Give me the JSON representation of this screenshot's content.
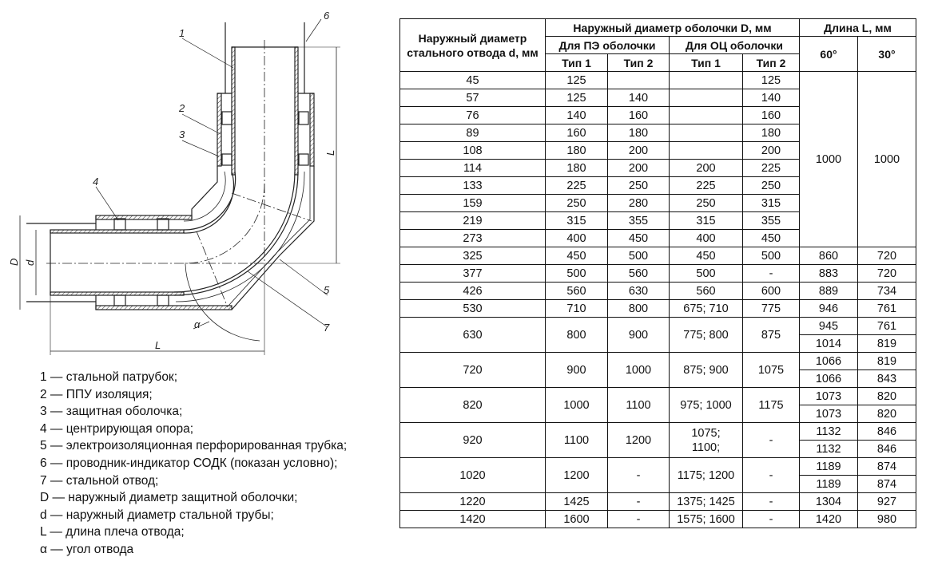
{
  "drawing": {
    "labels": {
      "n1": "1",
      "n2": "2",
      "n3": "3",
      "n4": "4",
      "n5": "5",
      "n6": "6",
      "n7": "7",
      "D": "D",
      "d": "d",
      "L_horizontal": "L",
      "L_vertical": "L",
      "alpha": "α"
    }
  },
  "legend": [
    "1 — стальной патрубок;",
    "2 — ППУ изоляция;",
    "3 — защитная оболочка;",
    "4 — центрирующая опора;",
    "5 — электроизоляционная перфорированная трубка;",
    "6 — проводник-индикатор СОДК (показан условно);",
    "7 — стальной отвод;",
    "D — наружный диаметр защитной оболочки;",
    "d — наружный диаметр стальной трубы;",
    "L — длина плеча отвода;",
    "α — угол отвода"
  ],
  "table": {
    "headers": {
      "steel_d": "Наружный диаметр стального отвода d, мм",
      "shell_D": "Наружный диаметр оболочки D, мм",
      "length_L": "Длина L, мм",
      "pe": "Для ПЭ оболочки",
      "oc": "Для ОЦ оболочки",
      "type1": "Тип 1",
      "type2": "Тип 2",
      "deg60": "60°",
      "deg30": "30°"
    },
    "merged_length": {
      "l60": "1000",
      "l30": "1000"
    },
    "rows": [
      {
        "d": "45",
        "pe1": "125",
        "pe2": "",
        "oc1": "",
        "oc2": "125"
      },
      {
        "d": "57",
        "pe1": "125",
        "pe2": "140",
        "oc1": "",
        "oc2": "140"
      },
      {
        "d": "76",
        "pe1": "140",
        "pe2": "160",
        "oc1": "",
        "oc2": "160"
      },
      {
        "d": "89",
        "pe1": "160",
        "pe2": "180",
        "oc1": "",
        "oc2": "180"
      },
      {
        "d": "108",
        "pe1": "180",
        "pe2": "200",
        "oc1": "",
        "oc2": "200"
      },
      {
        "d": "114",
        "pe1": "180",
        "pe2": "200",
        "oc1": "200",
        "oc2": "225"
      },
      {
        "d": "133",
        "pe1": "225",
        "pe2": "250",
        "oc1": "225",
        "oc2": "250"
      },
      {
        "d": "159",
        "pe1": "250",
        "pe2": "280",
        "oc1": "250",
        "oc2": "315"
      },
      {
        "d": "219",
        "pe1": "315",
        "pe2": "355",
        "oc1": "315",
        "oc2": "355"
      },
      {
        "d": "273",
        "pe1": "400",
        "pe2": "450",
        "oc1": "400",
        "oc2": "450"
      },
      {
        "d": "325",
        "pe1": "450",
        "pe2": "500",
        "oc1": "450",
        "oc2": "500",
        "L": [
          [
            "860",
            "720"
          ]
        ]
      },
      {
        "d": "377",
        "pe1": "500",
        "pe2": "560",
        "oc1": "500",
        "oc2": "-",
        "L": [
          [
            "883",
            "720"
          ]
        ]
      },
      {
        "d": "426",
        "pe1": "560",
        "pe2": "630",
        "oc1": "560",
        "oc2": "600",
        "L": [
          [
            "889",
            "734"
          ]
        ]
      },
      {
        "d": "530",
        "pe1": "710",
        "pe2": "800",
        "oc1": "675; 710",
        "oc2": "775",
        "L": [
          [
            "946",
            "761"
          ]
        ]
      },
      {
        "d": "630",
        "pe1": "800",
        "pe2": "900",
        "oc1": "775; 800",
        "oc2": "875",
        "L": [
          [
            "945",
            "761"
          ],
          [
            "1014",
            "819"
          ]
        ]
      },
      {
        "d": "720",
        "pe1": "900",
        "pe2": "1000",
        "oc1": "875; 900",
        "oc2": "1075",
        "L": [
          [
            "1066",
            "819"
          ],
          [
            "1066",
            "843"
          ]
        ]
      },
      {
        "d": "820",
        "pe1": "1000",
        "pe2": "1100",
        "oc1": "975; 1000",
        "oc2": "1175",
        "L": [
          [
            "1073",
            "820"
          ],
          [
            "1073",
            "820"
          ]
        ]
      },
      {
        "d": "920",
        "pe1": "1100",
        "pe2": "1200",
        "oc1": "1075;\n1100;",
        "oc2": "-",
        "L": [
          [
            "1132",
            "846"
          ],
          [
            "1132",
            "846"
          ]
        ]
      },
      {
        "d": "1020",
        "pe1": "1200",
        "pe2": "-",
        "oc1": "1175; 1200",
        "oc2": "-",
        "L": [
          [
            "1189",
            "874"
          ],
          [
            "1189",
            "874"
          ]
        ]
      },
      {
        "d": "1220",
        "pe1": "1425",
        "pe2": "-",
        "oc1": "1375; 1425",
        "oc2": "-",
        "L": [
          [
            "1304",
            "927"
          ]
        ]
      },
      {
        "d": "1420",
        "pe1": "1600",
        "pe2": "-",
        "oc1": "1575; 1600",
        "oc2": "-",
        "L": [
          [
            "1420",
            "980"
          ]
        ]
      }
    ]
  }
}
